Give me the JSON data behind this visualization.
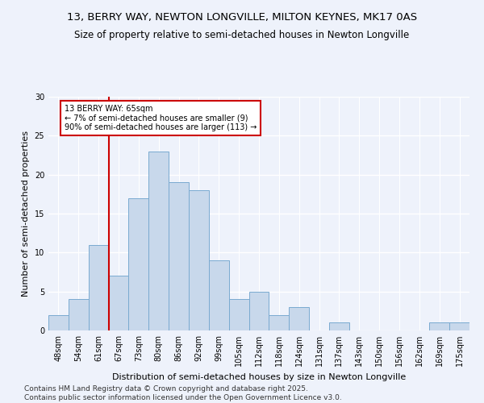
{
  "title": "13, BERRY WAY, NEWTON LONGVILLE, MILTON KEYNES, MK17 0AS",
  "subtitle": "Size of property relative to semi-detached houses in Newton Longville",
  "xlabel": "Distribution of semi-detached houses by size in Newton Longville",
  "ylabel": "Number of semi-detached properties",
  "bins": [
    "48sqm",
    "54sqm",
    "61sqm",
    "67sqm",
    "73sqm",
    "80sqm",
    "86sqm",
    "92sqm",
    "99sqm",
    "105sqm",
    "112sqm",
    "118sqm",
    "124sqm",
    "131sqm",
    "137sqm",
    "143sqm",
    "150sqm",
    "156sqm",
    "162sqm",
    "169sqm",
    "175sqm"
  ],
  "values": [
    2,
    4,
    11,
    7,
    17,
    23,
    19,
    18,
    9,
    4,
    5,
    2,
    3,
    0,
    1,
    0,
    0,
    0,
    0,
    1,
    1
  ],
  "bar_color": "#c8d8eb",
  "bar_edge_color": "#7aaad0",
  "vline_color": "#cc0000",
  "vline_x_index": 2.5,
  "annotation_text": "13 BERRY WAY: 65sqm\n← 7% of semi-detached houses are smaller (9)\n90% of semi-detached houses are larger (113) →",
  "annotation_box_color": "#ffffff",
  "annotation_box_edge": "#cc0000",
  "ylim": [
    0,
    30
  ],
  "yticks": [
    0,
    5,
    10,
    15,
    20,
    25,
    30
  ],
  "footer": "Contains HM Land Registry data © Crown copyright and database right 2025.\nContains public sector information licensed under the Open Government Licence v3.0.",
  "bg_color": "#eef2fb",
  "grid_color": "#ffffff",
  "title_fontsize": 9.5,
  "subtitle_fontsize": 8.5,
  "axis_label_fontsize": 8,
  "tick_fontsize": 7,
  "annotation_fontsize": 7,
  "footer_fontsize": 6.5
}
